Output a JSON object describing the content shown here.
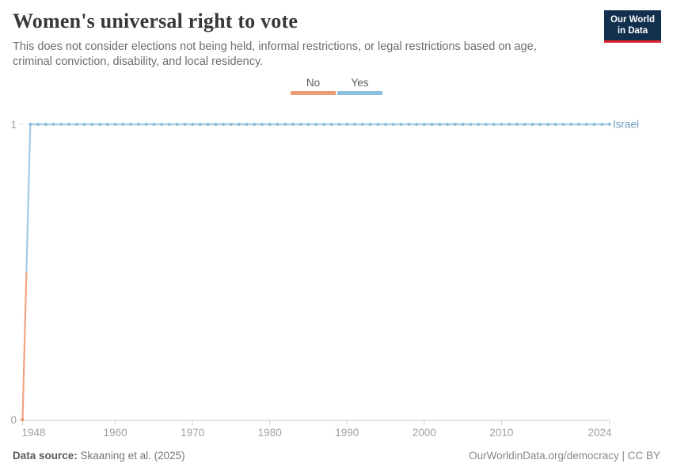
{
  "header": {
    "title": "Women's universal right to vote",
    "subtitle": "This does not consider elections not being held, informal restrictions, or legal restrictions based on age, criminal conviction, disability, and local residency.",
    "logo": {
      "line1": "Our World",
      "line2": "in Data",
      "bg_color": "#12304e",
      "accent_color": "#e0232d"
    }
  },
  "legend": {
    "items": [
      {
        "label": "No",
        "color": "#f09b78"
      },
      {
        "label": "Yes",
        "color": "#8bbfdc"
      }
    ]
  },
  "chart_data": {
    "type": "line",
    "title": "Women's universal right to vote",
    "entity": "Israel",
    "xlim": [
      1948,
      2024
    ],
    "ylim": [
      0,
      1
    ],
    "x_ticks": [
      1948,
      1960,
      1970,
      1980,
      1990,
      2000,
      2010,
      2024
    ],
    "y_ticks": [
      0,
      1
    ],
    "grid": false,
    "legend_position": "top-center",
    "series": [
      {
        "name": "Israel",
        "points": [
          {
            "year": 1948,
            "value": 0
          },
          {
            "year": 1949,
            "value": 1
          },
          {
            "year": 2024,
            "value": 1
          }
        ],
        "annual_markers": true,
        "note": "Value 0 (No) in 1948; value 1 (Yes) every year from 1949 through 2024. The 1948-1949 transition segment is drawn orange below 0.5 and blue above 0.5."
      }
    ],
    "colors": {
      "no_line": "#f2a384",
      "no_marker": "#ee8e67",
      "yes_line": "#a3cae4",
      "yes_marker": "#85b8da",
      "axis": "#cccccc",
      "y_tick": "#dcdcdc",
      "tick_label": "#a1a1a1",
      "entity_label": "#6e9bb9"
    }
  },
  "footer": {
    "source_label": "Data source:",
    "source_value": "Skaaning et al. (2025)",
    "attribution": "OurWorldinData.org/democracy | CC BY"
  }
}
